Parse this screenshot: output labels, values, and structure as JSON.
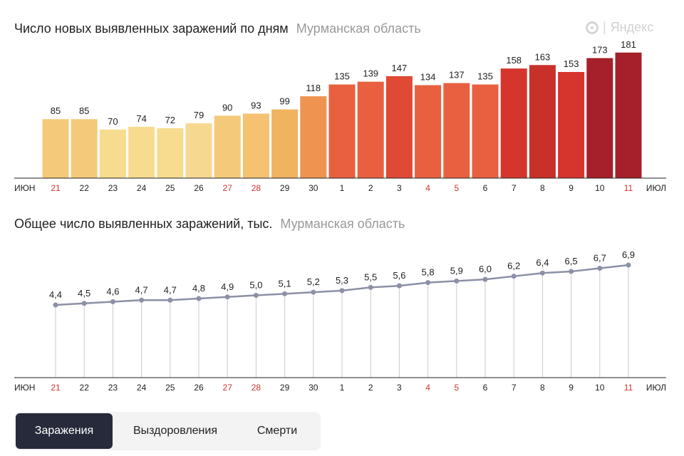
{
  "chart1": {
    "title": "Число новых выявленных заражений по дням",
    "region": "Мурманская область"
  },
  "chart2": {
    "title": "Общее число выявленных заражений, тыс.",
    "region": "Мурманская область"
  },
  "logo": {
    "text": "Яндекс"
  },
  "axis": {
    "left_label": "ИЮН",
    "right_label": "ИЮЛ"
  },
  "colors": {
    "axis": "#222222",
    "weekend_label": "#d0342c",
    "line": "#8c90a6",
    "tab_active_bg": "#262a3a"
  },
  "tabs": [
    {
      "label": "Заражения",
      "active": true
    },
    {
      "label": "Выздоровления",
      "active": false
    },
    {
      "label": "Смерти",
      "active": false
    }
  ],
  "chart_data": [
    {
      "type": "bar",
      "categories": [
        "21",
        "22",
        "23",
        "24",
        "25",
        "26",
        "27",
        "28",
        "29",
        "30",
        "1",
        "2",
        "3",
        "4",
        "5",
        "6",
        "7",
        "8",
        "9",
        "10",
        "11"
      ],
      "weekend": [
        true,
        false,
        false,
        false,
        false,
        false,
        true,
        true,
        false,
        false,
        false,
        false,
        false,
        true,
        true,
        false,
        false,
        false,
        false,
        false,
        true
      ],
      "values": [
        85,
        85,
        70,
        74,
        72,
        79,
        90,
        93,
        99,
        118,
        135,
        139,
        147,
        134,
        137,
        135,
        158,
        163,
        153,
        173,
        181
      ],
      "bar_colors": [
        "#f4c97a",
        "#f4c97a",
        "#f7dc8f",
        "#f7dc8f",
        "#f7dc8f",
        "#f7d890",
        "#f4c97a",
        "#f4c270",
        "#f0b35f",
        "#ee9450",
        "#e8603f",
        "#e8603f",
        "#e04a34",
        "#e8603f",
        "#e8603f",
        "#e8603f",
        "#d6352d",
        "#c83129",
        "#d6352d",
        "#a5202a",
        "#a5202a"
      ],
      "ylim": [
        0,
        190
      ],
      "grid": false
    },
    {
      "type": "line",
      "categories": [
        "21",
        "22",
        "23",
        "24",
        "25",
        "26",
        "27",
        "28",
        "29",
        "30",
        "1",
        "2",
        "3",
        "4",
        "5",
        "6",
        "7",
        "8",
        "9",
        "10",
        "11"
      ],
      "weekend": [
        true,
        false,
        false,
        false,
        false,
        false,
        true,
        true,
        false,
        false,
        false,
        false,
        false,
        true,
        true,
        false,
        false,
        false,
        false,
        false,
        true
      ],
      "values": [
        4.4,
        4.5,
        4.6,
        4.7,
        4.7,
        4.8,
        4.9,
        5.0,
        5.1,
        5.2,
        5.3,
        5.5,
        5.6,
        5.8,
        5.9,
        6.0,
        6.2,
        6.4,
        6.5,
        6.7,
        6.9
      ],
      "labels": [
        "4,4",
        "4,5",
        "4,6",
        "4,7",
        "4,7",
        "4,8",
        "4,9",
        "5,0",
        "5,1",
        "5,2",
        "5,3",
        "5,5",
        "5,6",
        "5,8",
        "5,9",
        "6,0",
        "6,2",
        "6,4",
        "6,5",
        "6,7",
        "6,9"
      ],
      "grid": false
    }
  ]
}
